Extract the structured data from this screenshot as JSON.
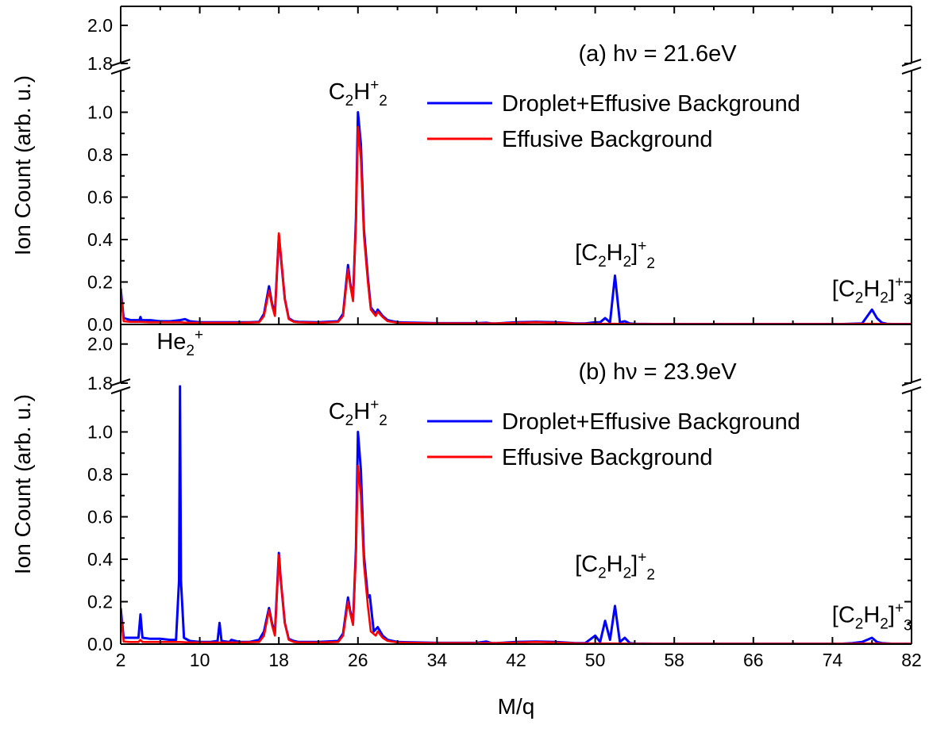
{
  "figure": {
    "xlabel": "M/q",
    "ylabel": "Ion Count (arb. u.)",
    "xlim": [
      2,
      82
    ],
    "x_ticks": [
      "2",
      "10",
      "18",
      "26",
      "34",
      "42",
      "50",
      "58",
      "66",
      "74",
      "82"
    ],
    "y_ticks_lower": [
      "0.0",
      "0.2",
      "0.4",
      "0.6",
      "0.8",
      "1.0"
    ],
    "y_ticks_upper": [
      "1.8",
      "2.0"
    ],
    "axis_break": true,
    "colors": {
      "droplet": "#0000ff",
      "effusive": "#ff0000"
    }
  },
  "chart_data": [
    {
      "type": "line",
      "panel_label": "(a) hν = 21.6eV",
      "legend_position": "top-right",
      "ylim_lower": [
        0,
        1.2
      ],
      "ylim_upper": [
        1.8,
        2.1
      ],
      "series": [
        {
          "name": "Droplet+Effusive Background",
          "color": "#0000ff",
          "x": [
            2,
            2.3,
            3,
            3.9,
            4,
            4.1,
            5,
            6,
            7,
            8,
            8.5,
            9,
            10,
            11,
            12,
            13,
            14,
            15,
            16,
            16.5,
            17,
            17.3,
            17.6,
            18,
            18.2,
            18.6,
            19,
            19.5,
            20,
            22,
            24,
            24.5,
            25,
            25.2,
            25.5,
            25.8,
            26,
            26.3,
            26.6,
            27,
            27.3,
            27.8,
            28,
            28.5,
            29,
            30,
            32,
            34,
            36,
            38,
            39,
            39.5,
            40,
            42,
            44,
            46,
            48,
            49,
            50,
            50.5,
            51,
            51.5,
            52,
            52.5,
            53,
            53.5,
            54,
            56,
            60,
            65,
            70,
            75,
            77,
            78,
            78.5,
            79,
            79.5,
            80,
            82
          ],
          "values": [
            0.17,
            0.03,
            0.02,
            0.02,
            0.035,
            0.02,
            0.02,
            0.015,
            0.015,
            0.02,
            0.025,
            0.015,
            0.01,
            0.01,
            0.01,
            0.01,
            0.01,
            0.01,
            0.012,
            0.05,
            0.18,
            0.1,
            0.05,
            0.42,
            0.32,
            0.12,
            0.03,
            0.015,
            0.012,
            0.01,
            0.015,
            0.05,
            0.28,
            0.2,
            0.12,
            0.5,
            1.0,
            0.85,
            0.45,
            0.22,
            0.08,
            0.05,
            0.07,
            0.04,
            0.02,
            0.01,
            0.008,
            0.006,
            0.006,
            0.006,
            0.008,
            0.005,
            0.005,
            0.01,
            0.012,
            0.01,
            0.005,
            0.005,
            0.01,
            0.01,
            0.03,
            0.01,
            0.23,
            0.01,
            0.015,
            0.005,
            0.003,
            0.002,
            0.002,
            0.002,
            0.002,
            0.002,
            0.005,
            0.07,
            0.03,
            0.008,
            0.003,
            0.002,
            0.002
          ]
        },
        {
          "name": "Effusive Background",
          "color": "#ff0000",
          "x": [
            2,
            2.3,
            3,
            4,
            5,
            6,
            7,
            8,
            9,
            10,
            12,
            14,
            16,
            16.5,
            17,
            17.3,
            17.6,
            18,
            18.2,
            18.6,
            19,
            19.5,
            20,
            22,
            24,
            24.5,
            25,
            25.2,
            25.5,
            25.8,
            26,
            26.3,
            26.6,
            27,
            27.3,
            27.8,
            28,
            28.5,
            29,
            30,
            32,
            34,
            36,
            38,
            40,
            42,
            44,
            46,
            48,
            50,
            52,
            54,
            56,
            60,
            65,
            70,
            75,
            78,
            80,
            82
          ],
          "values": [
            0.16,
            0.015,
            0.012,
            0.012,
            0.01,
            0.01,
            0.01,
            0.01,
            0.008,
            0.008,
            0.008,
            0.008,
            0.01,
            0.04,
            0.16,
            0.09,
            0.04,
            0.43,
            0.33,
            0.12,
            0.025,
            0.012,
            0.01,
            0.008,
            0.012,
            0.04,
            0.26,
            0.19,
            0.11,
            0.48,
            0.93,
            0.78,
            0.42,
            0.2,
            0.07,
            0.04,
            0.06,
            0.035,
            0.015,
            0.008,
            0.006,
            0.005,
            0.005,
            0.005,
            0.005,
            0.008,
            0.01,
            0.008,
            0.004,
            0.003,
            0.003,
            0.002,
            0.002,
            0.002,
            0.002,
            0.002,
            0.002,
            0.003,
            0.002,
            0.002
          ]
        }
      ],
      "annotations": [
        {
          "base": "C",
          "sub1": "2",
          "mid": "H",
          "sup": "+",
          "sub2": "2",
          "x": 26,
          "y": 1.04
        },
        {
          "text_open": "[C",
          "sub1": "2",
          "mid": "H",
          "sub2": "2",
          "close": "]",
          "sup": "+",
          "sub3": "2",
          "x": 52,
          "y": 0.28
        },
        {
          "text_open": "[C",
          "sub1": "2",
          "mid": "H",
          "sub2": "2",
          "close": "]",
          "sup": "+",
          "sub3": "3",
          "x": 78,
          "y": 0.11
        }
      ]
    },
    {
      "type": "line",
      "panel_label": "(b) hν = 23.9eV",
      "legend_position": "top-right",
      "ylim_lower": [
        0,
        1.2
      ],
      "ylim_upper": [
        1.8,
        2.1
      ],
      "series": [
        {
          "name": "Droplet+Effusive Background",
          "color": "#0000ff",
          "x": [
            2,
            2.3,
            3,
            3.8,
            4,
            4.2,
            5,
            6,
            7,
            7.6,
            7.9,
            8,
            8.1,
            8.4,
            9,
            10,
            11,
            11.8,
            12,
            12.2,
            13,
            13.2,
            14,
            15,
            16,
            16.5,
            17,
            17.3,
            17.6,
            18,
            18.2,
            18.6,
            19,
            19.5,
            20,
            22,
            24,
            24.5,
            25,
            25.2,
            25.5,
            25.8,
            26,
            26.3,
            26.6,
            27,
            27.2,
            27.6,
            28,
            28.5,
            29,
            30,
            32,
            34,
            36,
            38,
            39,
            39.5,
            40,
            42,
            44,
            46,
            48,
            49,
            50,
            50.5,
            51,
            51.5,
            52,
            52.5,
            53,
            53.5,
            54,
            56,
            60,
            65,
            70,
            75,
            76,
            77,
            78,
            78.5,
            79,
            80,
            82
          ],
          "values": [
            0.17,
            0.03,
            0.03,
            0.03,
            0.14,
            0.03,
            0.025,
            0.025,
            0.02,
            0.02,
            0.3,
            1.25,
            0.3,
            0.03,
            0.015,
            0.01,
            0.01,
            0.015,
            0.1,
            0.015,
            0.01,
            0.02,
            0.01,
            0.01,
            0.02,
            0.06,
            0.17,
            0.1,
            0.05,
            0.43,
            0.3,
            0.1,
            0.025,
            0.015,
            0.01,
            0.01,
            0.015,
            0.05,
            0.22,
            0.16,
            0.1,
            0.45,
            1.0,
            0.82,
            0.42,
            0.22,
            0.23,
            0.06,
            0.08,
            0.04,
            0.02,
            0.01,
            0.008,
            0.006,
            0.006,
            0.006,
            0.012,
            0.005,
            0.005,
            0.01,
            0.012,
            0.01,
            0.005,
            0.005,
            0.04,
            0.01,
            0.11,
            0.02,
            0.18,
            0.01,
            0.03,
            0.005,
            0.003,
            0.002,
            0.002,
            0.002,
            0.002,
            0.002,
            0.005,
            0.01,
            0.03,
            0.01,
            0.005,
            0.002,
            0.002
          ]
        },
        {
          "name": "Effusive Background",
          "color": "#ff0000",
          "x": [
            2,
            2.3,
            3,
            3.8,
            4,
            4.2,
            5,
            6,
            7,
            8,
            9,
            10,
            12,
            14,
            16,
            16.5,
            17,
            17.3,
            17.6,
            18,
            18.2,
            18.6,
            19,
            19.5,
            20,
            22,
            24,
            24.5,
            25,
            25.2,
            25.5,
            25.8,
            26,
            26.3,
            26.6,
            27,
            27.3,
            27.8,
            28,
            28.5,
            29,
            30,
            32,
            34,
            36,
            38,
            40,
            42,
            44,
            46,
            48,
            50,
            52,
            54,
            56,
            60,
            65,
            70,
            75,
            78,
            80,
            82
          ],
          "values": [
            0.15,
            0.012,
            0.01,
            0.01,
            0.02,
            0.01,
            0.01,
            0.01,
            0.01,
            0.01,
            0.008,
            0.008,
            0.008,
            0.008,
            0.01,
            0.04,
            0.16,
            0.09,
            0.04,
            0.42,
            0.3,
            0.1,
            0.02,
            0.01,
            0.008,
            0.008,
            0.01,
            0.04,
            0.2,
            0.15,
            0.09,
            0.43,
            0.84,
            0.7,
            0.38,
            0.18,
            0.06,
            0.04,
            0.06,
            0.03,
            0.015,
            0.008,
            0.006,
            0.005,
            0.005,
            0.005,
            0.005,
            0.008,
            0.01,
            0.008,
            0.004,
            0.003,
            0.003,
            0.002,
            0.002,
            0.002,
            0.002,
            0.002,
            0.002,
            0.003,
            0.002,
            0.002
          ]
        }
      ],
      "annotations": [
        {
          "base": "He",
          "sub1": "2",
          "sup": "+",
          "x": 8,
          "y": 1.95
        },
        {
          "base": "C",
          "sub1": "2",
          "mid": "H",
          "sup": "+",
          "sub2": "2",
          "x": 26,
          "y": 1.04
        },
        {
          "text_open": "[C",
          "sub1": "2",
          "mid": "H",
          "sub2": "2",
          "close": "]",
          "sup": "+",
          "sub3": "2",
          "x": 52,
          "y": 0.32
        },
        {
          "text_open": "[C",
          "sub1": "2",
          "mid": "H",
          "sub2": "2",
          "close": "]",
          "sup": "+",
          "sub3": "3",
          "x": 78,
          "y": 0.08
        }
      ]
    }
  ]
}
